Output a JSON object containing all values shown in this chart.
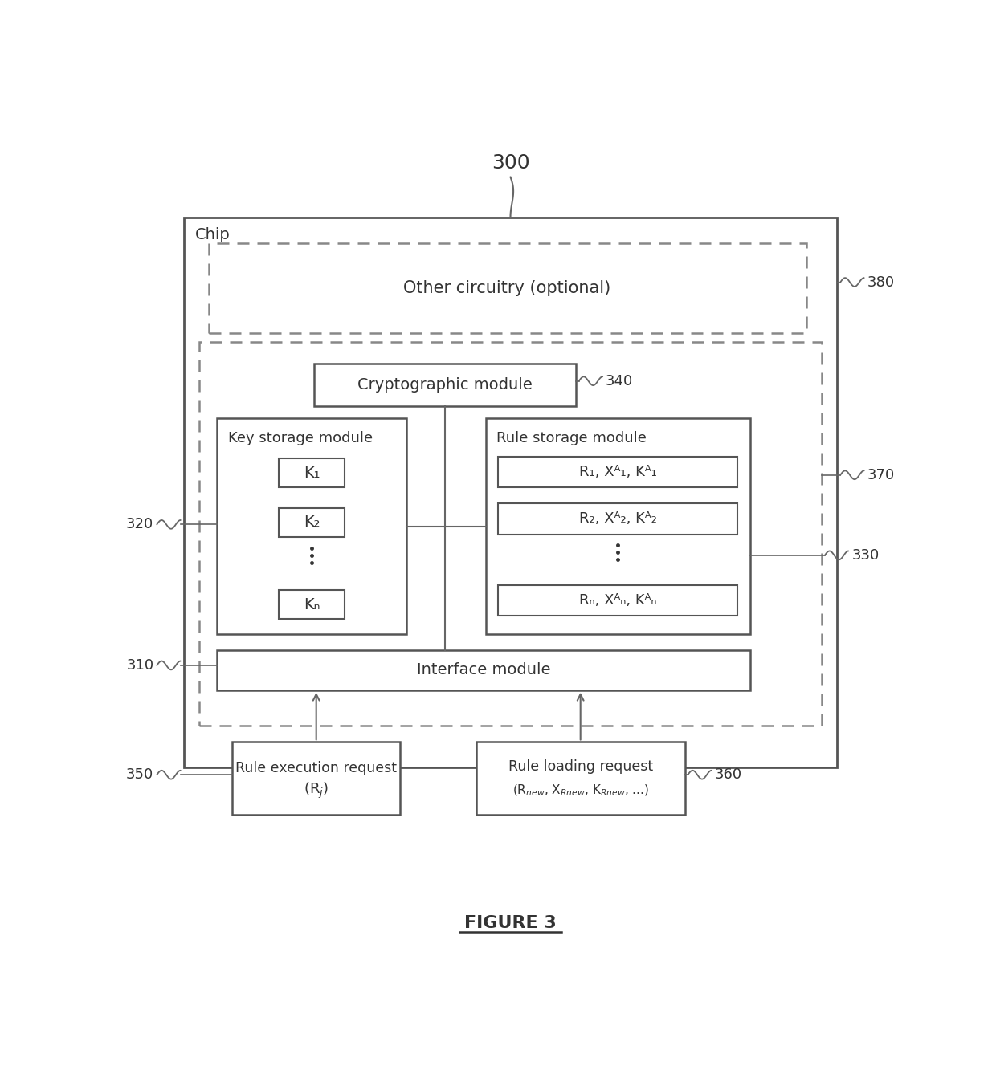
{
  "bg_color": "#ffffff",
  "line_color": "#666666",
  "title_label": "300",
  "chip_label": "Chip",
  "other_circuitry_label": "Other circuitry (optional)",
  "crypto_module_label": "Cryptographic module",
  "key_storage_label": "Key storage module",
  "rule_storage_label": "Rule storage module",
  "interface_label": "Interface module",
  "rule_exec_label1": "Rule execution request",
  "rule_exec_label2": "(R",
  "rule_exec_subscript": "j",
  "rule_exec_label2_end": ")",
  "rule_load_label1": "Rule loading request",
  "rule_load_label2": "(R",
  "key_items": [
    "K₁",
    "K₂",
    "Kₙ"
  ],
  "rule_items_text": [
    "R₁, Xᴬ₁, Kᴬ₁",
    "R₂, Xᴬ₂, Kᴬ₂",
    "Rₙ, Xᴬₙ, Kᴬₙ"
  ],
  "label_380": "380",
  "label_370": "370",
  "label_340": "340",
  "label_330": "330",
  "label_320": "320",
  "label_310": "310",
  "label_350": "350",
  "label_360": "360",
  "figure_label": "FIGURE 3",
  "font_color": "#333333"
}
